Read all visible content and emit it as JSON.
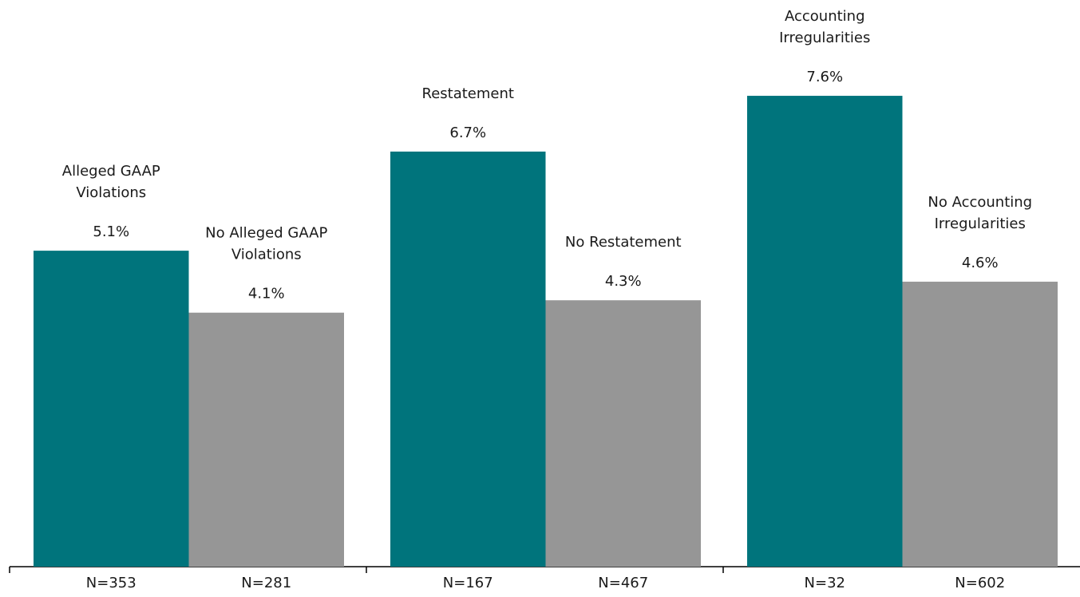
{
  "chart_data": {
    "type": "bar",
    "categories": [
      "N=353",
      "N=281",
      "N=167",
      "N=467",
      "N=32",
      "N=602"
    ],
    "values": [
      5.1,
      4.1,
      6.7,
      4.3,
      7.6,
      4.6
    ],
    "value_labels": [
      "5.1%",
      "4.1%",
      "6.7%",
      "4.3%",
      "7.6%",
      "4.6%"
    ],
    "bar_labels": [
      [
        "Alleged GAAP",
        "Violations"
      ],
      [
        "No Alleged GAAP",
        "Violations"
      ],
      [
        "Restatement"
      ],
      [
        "No Restatement"
      ],
      [
        "Accounting",
        "Irregularities"
      ],
      [
        "No Accounting",
        "Irregularities"
      ]
    ],
    "colors": [
      "#00747c",
      "#969696",
      "#00747c",
      "#969696",
      "#00747c",
      "#969696"
    ],
    "ylim": [
      0,
      8
    ]
  }
}
